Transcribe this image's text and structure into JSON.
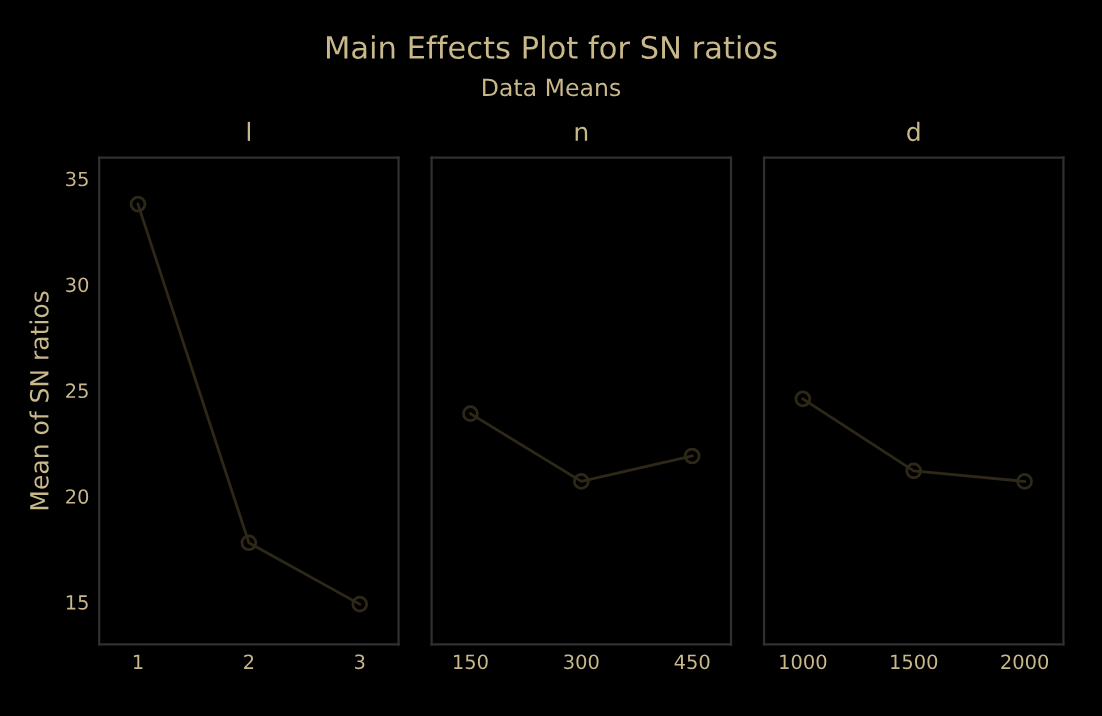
{
  "chart_data": [
    {
      "type": "line",
      "title": "l",
      "ylabel": "Mean of SN ratios",
      "annotations": [
        "Main Effects Plot for SN ratios",
        "Data Means"
      ],
      "categories": [
        "1",
        "2",
        "3"
      ],
      "series": [
        {
          "color": "#2e2818",
          "values": [
            33.8,
            17.8,
            14.9
          ]
        }
      ],
      "ylim": [
        13,
        36
      ],
      "yticks": [
        15,
        20,
        25,
        30,
        35
      ],
      "marker": "circle",
      "grid": false
    },
    {
      "type": "line",
      "title": "n",
      "categories": [
        "150",
        "300",
        "450"
      ],
      "series": [
        {
          "color": "#2e2818",
          "values": [
            23.9,
            20.7,
            21.9
          ]
        }
      ],
      "ylim": [
        13,
        36
      ],
      "tick_labels": "x",
      "marker": "circle",
      "grid": false
    },
    {
      "type": "line",
      "title": "d",
      "categories": [
        "1000",
        "1500",
        "2000"
      ],
      "series": [
        {
          "color": "#2e2818",
          "values": [
            24.6,
            21.2,
            20.7
          ]
        }
      ],
      "ylim": [
        13,
        36
      ],
      "tick_labels": "x",
      "marker": "circle",
      "grid": false
    }
  ]
}
